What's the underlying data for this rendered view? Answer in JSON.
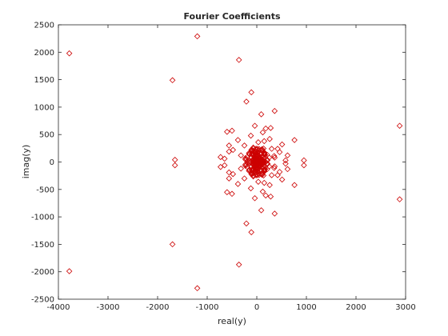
{
  "chart_data": {
    "type": "scatter",
    "title": "Fourier Coefficients",
    "xlabel": "real(y)",
    "ylabel": "imag(y)",
    "xlim": [
      -4000,
      3000
    ],
    "ylim": [
      -2500,
      2500
    ],
    "xticks": [
      -4000,
      -3000,
      -2000,
      -1000,
      0,
      1000,
      2000,
      3000
    ],
    "yticks": [
      -2500,
      -2000,
      -1500,
      -1000,
      -500,
      0,
      500,
      1000,
      1500,
      2000,
      2500
    ],
    "xtick_labels": [
      "-4000",
      "-3000",
      "-2000",
      "-1000",
      "0",
      "1000",
      "2000",
      "3000"
    ],
    "ytick_labels": [
      "-2500",
      "-2000",
      "-1500",
      "-1000",
      "-500",
      "0",
      "500",
      "1000",
      "1500",
      "2000",
      "2500"
    ],
    "grid": false,
    "marker": "diamond-open",
    "color": "#cc0000",
    "series": [
      {
        "x": [
          -3780,
          -3780,
          -1700,
          -1700,
          -1650,
          -1650,
          -1200,
          -1200,
          -360,
          -360,
          2880,
          2880,
          -110,
          -110,
          -210,
          -210,
          90,
          90,
          360,
          360,
          280,
          280,
          760,
          760,
          950,
          950,
          620,
          620,
          -600,
          -600,
          -500,
          -500,
          -560,
          -560,
          -380,
          -380,
          -480,
          -480,
          -730,
          -730,
          -650,
          -650,
          -560,
          -560,
          360,
          360,
          510,
          510,
          180,
          180,
          120,
          120,
          260,
          260,
          -40,
          -40,
          460,
          460,
          -250,
          -250,
          -120,
          -120,
          -90,
          -90,
          -320,
          -320,
          30,
          30,
          250,
          250,
          580,
          580,
          420,
          420,
          -150,
          -150,
          150,
          150,
          140,
          140,
          300,
          300,
          350,
          350
        ],
        "y": [
          1980,
          -1990,
          1490,
          -1500,
          40,
          -60,
          2290,
          -2300,
          1860,
          -1870,
          660,
          -680,
          1270,
          -1280,
          1100,
          -1120,
          870,
          -880,
          930,
          -940,
          620,
          -630,
          400,
          -420,
          30,
          -60,
          120,
          -130,
          550,
          -550,
          570,
          -580,
          300,
          -300,
          400,
          -400,
          220,
          -220,
          90,
          -90,
          60,
          -60,
          -190,
          190,
          -80,
          80,
          320,
          -320,
          610,
          -610,
          540,
          -540,
          420,
          -420,
          660,
          -660,
          180,
          -180,
          300,
          -300,
          480,
          -480,
          200,
          -200,
          120,
          -120,
          360,
          -360,
          80,
          -80,
          -30,
          30,
          240,
          -240,
          150,
          -150,
          380,
          -380,
          60,
          -60,
          240,
          -240,
          110,
          -110
        ]
      }
    ]
  }
}
